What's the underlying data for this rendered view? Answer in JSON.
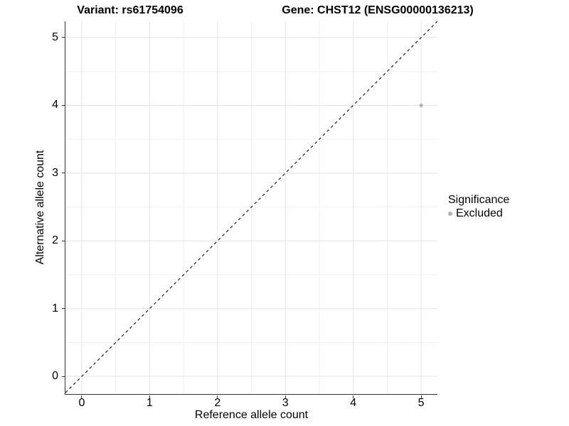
{
  "titles": {
    "left": "Variant: rs61754096",
    "right": "Gene: CHST12 (ENSG00000136213)"
  },
  "chart_data": {
    "type": "scatter",
    "title_left": "Variant: rs61754096",
    "title_right": "Gene: CHST12 (ENSG00000136213)",
    "xlabel": "Reference allele count",
    "ylabel": "Alternative allele count",
    "xlim": [
      -0.24,
      5.24
    ],
    "ylim": [
      -0.26,
      5.24
    ],
    "xticks": [
      0,
      1,
      2,
      3,
      4,
      5
    ],
    "yticks": [
      0,
      1,
      2,
      3,
      4,
      5
    ],
    "grid": true,
    "points": [
      {
        "x": 5,
        "y": 4,
        "group": "Excluded"
      }
    ],
    "identity_line": {
      "dashed": true,
      "color": "#1a1a1a"
    },
    "legend": {
      "title": "Significance",
      "position": "right",
      "entries": [
        {
          "label": "Excluded",
          "color": "#b3b3b3"
        }
      ]
    },
    "colors": {
      "point": "#b3b3b3",
      "grid_major": "#e3e3e3",
      "grid_minor": "#f0f0f0",
      "axis": "#333333"
    }
  }
}
